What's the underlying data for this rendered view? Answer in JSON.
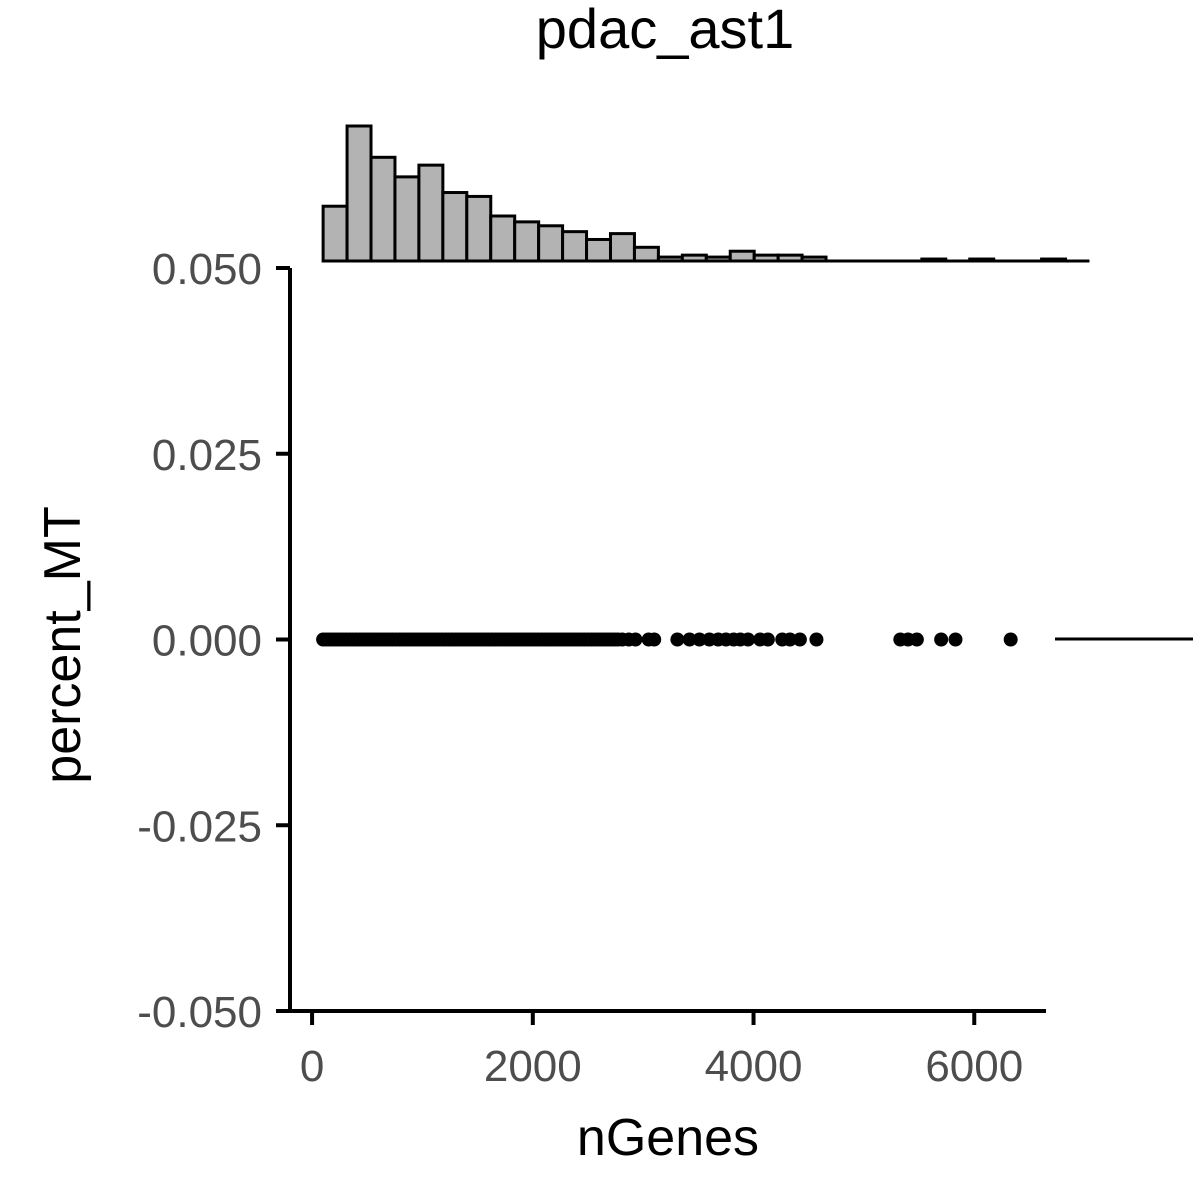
{
  "chart_data": {
    "type": "scatter",
    "title": "pdac_ast1",
    "xlabel": "nGenes",
    "ylabel": "percent_MT",
    "xlim": [
      -200,
      6650
    ],
    "ylim": [
      -0.05,
      0.05
    ],
    "x_ticks": [
      {
        "value": 0,
        "label": "0"
      },
      {
        "value": 2000,
        "label": "2000"
      },
      {
        "value": 4000,
        "label": "4000"
      },
      {
        "value": 6000,
        "label": "6000"
      }
    ],
    "y_ticks": [
      {
        "value": 0.05,
        "label": "0.050"
      },
      {
        "value": 0.025,
        "label": "0.025"
      },
      {
        "value": 0.0,
        "label": "0.000"
      },
      {
        "value": -0.025,
        "label": "-0.025"
      },
      {
        "value": -0.05,
        "label": "-0.050"
      }
    ],
    "grid": false,
    "legend": "right",
    "legend_visible_mark": "line",
    "points": {
      "y": 0,
      "x": [
        100,
        130,
        160,
        190,
        220,
        250,
        280,
        310,
        340,
        370,
        400,
        430,
        460,
        490,
        520,
        550,
        580,
        610,
        640,
        670,
        700,
        730,
        760,
        790,
        820,
        850,
        880,
        910,
        940,
        970,
        1000,
        1030,
        1060,
        1090,
        1120,
        1150,
        1180,
        1210,
        1240,
        1270,
        1300,
        1330,
        1360,
        1390,
        1420,
        1450,
        1480,
        1510,
        1540,
        1570,
        1600,
        1630,
        1660,
        1690,
        1720,
        1750,
        1780,
        1810,
        1840,
        1870,
        1900,
        1930,
        1960,
        1990,
        2020,
        2050,
        2080,
        2110,
        2140,
        2170,
        2200,
        2230,
        2260,
        2290,
        2320,
        2350,
        2380,
        2410,
        2440,
        2470,
        2500,
        2530,
        2560,
        2590,
        2620,
        2650,
        2680,
        2710,
        2740,
        2770,
        2810,
        2870,
        2930,
        3050,
        3100,
        3310,
        3420,
        3510,
        3600,
        3680,
        3750,
        3820,
        3880,
        3950,
        4060,
        4130,
        4260,
        4330,
        4420,
        4570,
        5330,
        5400,
        5480,
        5700,
        5830,
        6330
      ],
      "color": "#000000"
    },
    "histogram": {
      "bin_width": 217,
      "start": 100,
      "counts": [
        74,
        156,
        124,
        104,
        116,
        88,
        84,
        64,
        58,
        54,
        48,
        40,
        46,
        32,
        22,
        24,
        22,
        28,
        24,
        24,
        22,
        18,
        18,
        18,
        18,
        20,
        18,
        20,
        18,
        18,
        20,
        18
      ],
      "baseline": 18,
      "max_count": 156,
      "fill": "#b3b3b3",
      "stroke": "#000000"
    }
  }
}
